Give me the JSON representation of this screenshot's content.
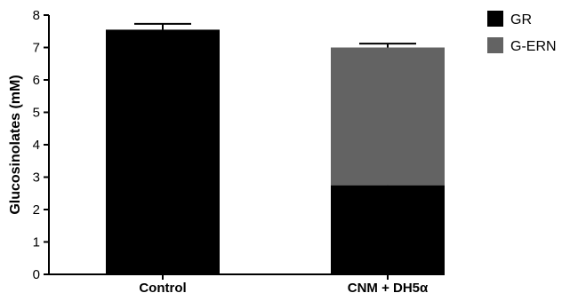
{
  "chart_data": {
    "type": "bar",
    "stacked": true,
    "title": "",
    "xlabel": "",
    "ylabel": "Glucosinolates (mM)",
    "ylim": [
      0,
      8
    ],
    "yticks": [
      0,
      1,
      2,
      3,
      4,
      5,
      6,
      7,
      8
    ],
    "grid": false,
    "legend_position": "top-right",
    "categories": [
      "Control",
      "CNM + DH5α"
    ],
    "series": [
      {
        "name": "GR",
        "color": "#000000",
        "values": [
          7.55,
          2.75
        ],
        "errors": [
          0.18,
          0.1
        ]
      },
      {
        "name": "G-ERN",
        "color": "#636363",
        "values": [
          0,
          4.25
        ],
        "errors": [
          0,
          0.12
        ]
      }
    ]
  }
}
